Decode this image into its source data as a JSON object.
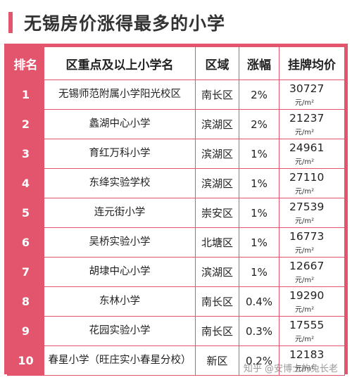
{
  "title": "无锡房价涨得最多的小学",
  "table": {
    "headers": {
      "rank": "排名",
      "school": "区重点及以上小学名",
      "district": "区域",
      "increase": "涨幅",
      "price": "挂牌均价"
    },
    "unit": "元/m²",
    "rows": [
      {
        "rank": "1",
        "school": "无锡师范附属小学阳光校区",
        "district": "南长区",
        "increase": "2%",
        "price": "30727"
      },
      {
        "rank": "2",
        "school": "蠡湖中心小学",
        "district": "滨湖区",
        "increase": "2%",
        "price": "21237"
      },
      {
        "rank": "3",
        "school": "育红万科小学",
        "district": "滨湖区",
        "increase": "1%",
        "price": "24961"
      },
      {
        "rank": "4",
        "school": "东绛实验学校",
        "district": "滨湖区",
        "increase": "1%",
        "price": "27110"
      },
      {
        "rank": "5",
        "school": "连元街小学",
        "district": "崇安区",
        "increase": "1%",
        "price": "27539"
      },
      {
        "rank": "6",
        "school": "吴桥实验小学",
        "district": "北塘区",
        "increase": "1%",
        "price": "16773"
      },
      {
        "rank": "7",
        "school": "胡埭中心小学",
        "district": "滨湖区",
        "increase": "1%",
        "price": "12667"
      },
      {
        "rank": "8",
        "school": "东林小学",
        "district": "南长区",
        "increase": "0.4%",
        "price": "19290"
      },
      {
        "rank": "9",
        "school": "花园实验小学",
        "district": "南长区",
        "increase": "0.3%",
        "price": "17555"
      },
      {
        "rank": "10",
        "school": "春星小学（旺庄实小春星分校）",
        "district": "新区",
        "increase": "0.2%",
        "price": "12183"
      }
    ]
  },
  "watermark": "知乎 @安博士的兔长老",
  "colors": {
    "accent": "#e3556c",
    "text": "#222222"
  }
}
